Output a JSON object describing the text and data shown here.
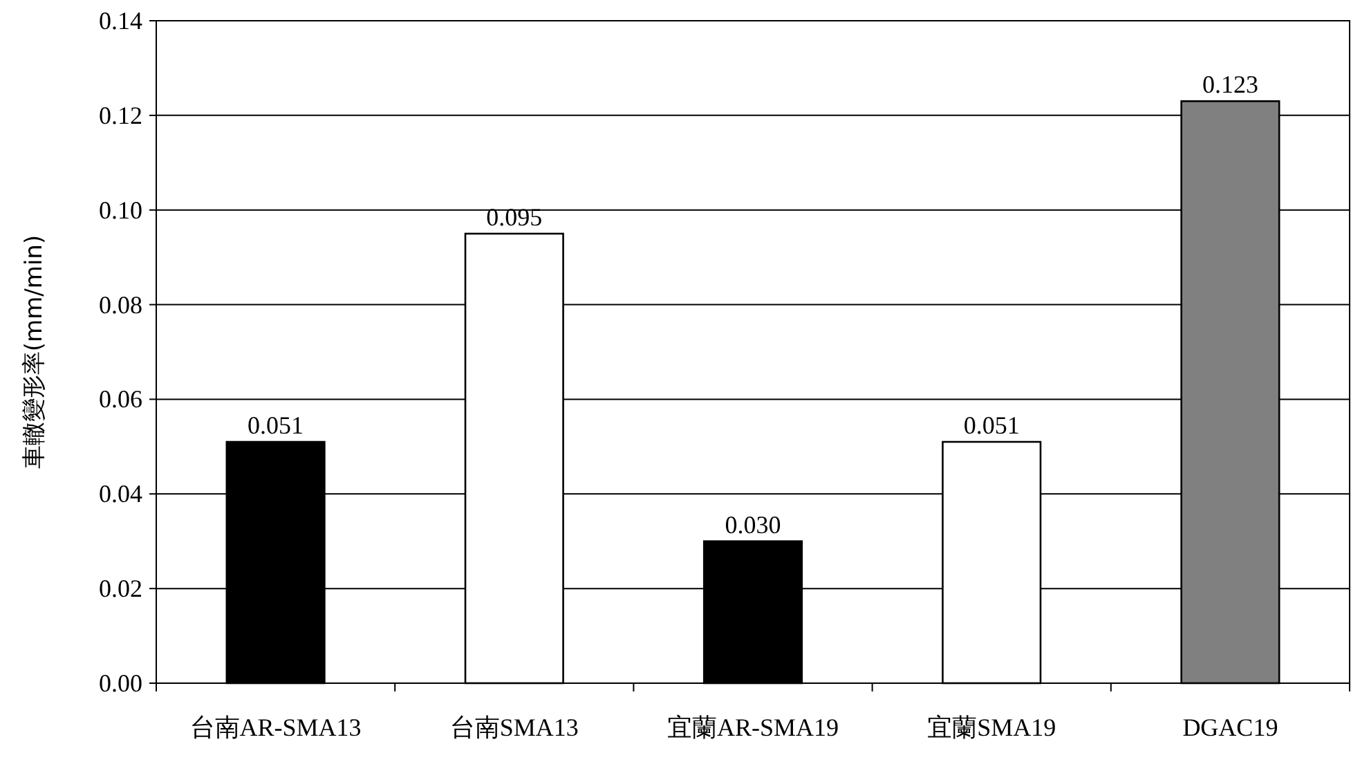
{
  "chart_data": {
    "type": "bar",
    "ylabel": "車轍變形率(mm/min)",
    "categories": [
      "台南AR-SMA13",
      "台南SMA13",
      "宜蘭AR-SMA19",
      "宜蘭SMA19",
      "DGAC19"
    ],
    "values": [
      0.051,
      0.095,
      0.03,
      0.051,
      0.123
    ],
    "value_labels": [
      "0.051",
      "0.095",
      "0.030",
      "0.051",
      "0.123"
    ],
    "colors": [
      "#000000",
      "#ffffff",
      "#000000",
      "#ffffff",
      "#808080"
    ],
    "ylim": [
      0,
      0.14
    ],
    "yticks": [
      {
        "value": 0,
        "label": "0.00"
      },
      {
        "value": 0.02,
        "label": "0.02"
      },
      {
        "value": 0.04,
        "label": "0.04"
      },
      {
        "value": 0.06,
        "label": "0.06"
      },
      {
        "value": 0.08,
        "label": "0.08"
      },
      {
        "value": 0.1,
        "label": "0.10"
      },
      {
        "value": 0.12,
        "label": "0.12"
      },
      {
        "value": 0.14,
        "label": "0.14"
      }
    ],
    "grid": "y"
  }
}
